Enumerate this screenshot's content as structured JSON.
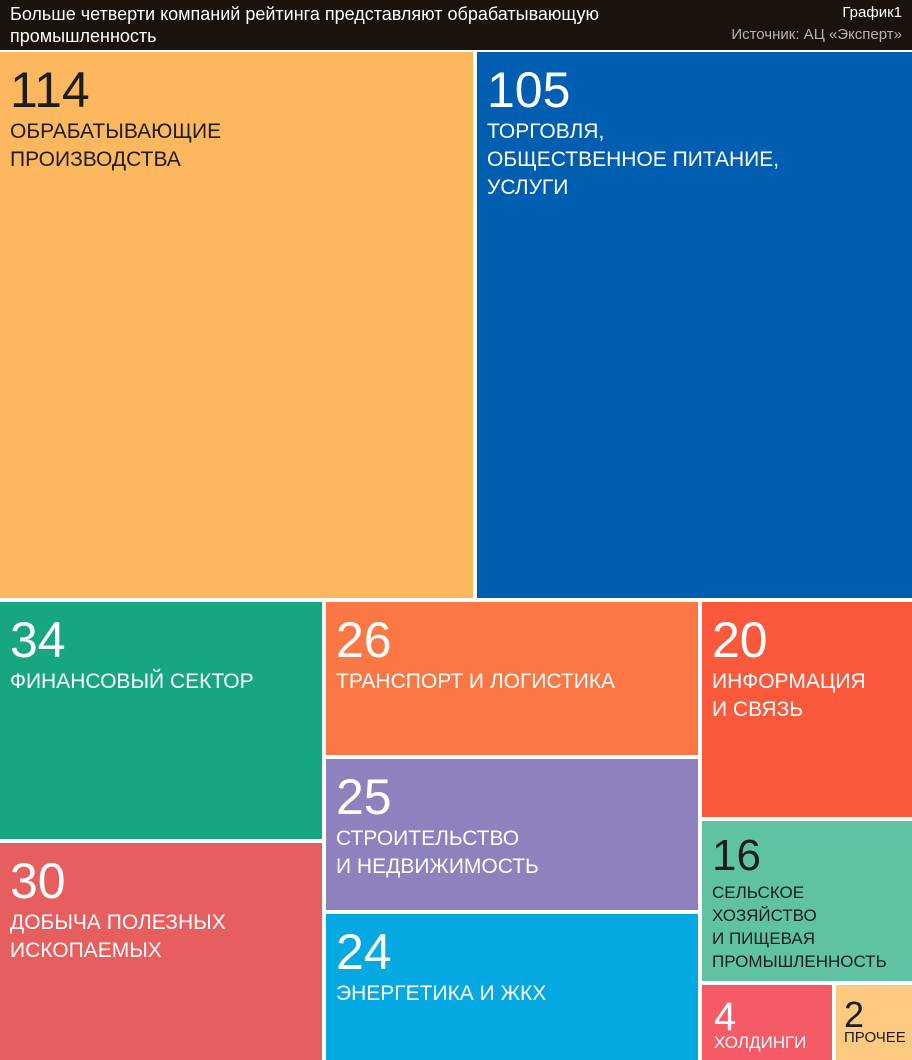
{
  "header": {
    "title": "Больше четверти компаний рейтинга представляют обрабатывающую промышленность",
    "chart_no": "График1",
    "source": "Источник: АЦ «Эксперт»"
  },
  "chart_data": {
    "type": "treemap",
    "title": "Больше четверти компаний рейтинга представляют обрабатывающую промышленность",
    "source": "Источник: АЦ «Эксперт»",
    "items": [
      {
        "value": 114,
        "label": "ОБРАБАТЫВАЮЩИЕ\nПРОИЗВОДСТВА",
        "color": "#fdb75f",
        "text_color": "#1d1d1b"
      },
      {
        "value": 105,
        "label": "ТОРГОВЛЯ,\nОБЩЕСТВЕННОЕ ПИТАНИЕ,\nУСЛУГИ",
        "color": "#005eb0",
        "text_color": "#ffffff"
      },
      {
        "value": 34,
        "label": "ФИНАНСОВЫЙ СЕКТОР",
        "color": "#16a782",
        "text_color": "#ffffff"
      },
      {
        "value": 30,
        "label": "ДОБЫЧА ПОЛЕЗНЫХ\nИСКОПАЕМЫХ",
        "color": "#e65e5d",
        "text_color": "#ffffff"
      },
      {
        "value": 26,
        "label": "ТРАНСПОРТ И ЛОГИСТИКА",
        "color": "#fb7744",
        "text_color": "#ffffff"
      },
      {
        "value": 25,
        "label": "СТРОИТЕЛЬСТВО\nИ НЕДВИЖИМОСТЬ",
        "color": "#8f81bd",
        "text_color": "#ffffff"
      },
      {
        "value": 24,
        "label": "ЭНЕРГЕТИКА И ЖКХ",
        "color": "#05a9e1",
        "text_color": "#ffffff"
      },
      {
        "value": 20,
        "label": "ИНФОРМАЦИЯ\nИ СВЯЗЬ",
        "color": "#fb593c",
        "text_color": "#ffffff"
      },
      {
        "value": 16,
        "label": "СЕЛЬСКОЕ ХОЗЯЙСТВО\nИ ПИЩЕВАЯ\nПРОМЫШЛЕННОСТЬ",
        "color": "#5fc2a3",
        "text_color": "#1d1d1b"
      },
      {
        "value": 4,
        "label": "ХОЛДИНГИ",
        "color": "#f55b67",
        "text_color": "#ffffff"
      },
      {
        "value": 2,
        "label": "ПРОЧЕЕ",
        "color": "#fec981",
        "text_color": "#1d1d1b"
      }
    ]
  }
}
